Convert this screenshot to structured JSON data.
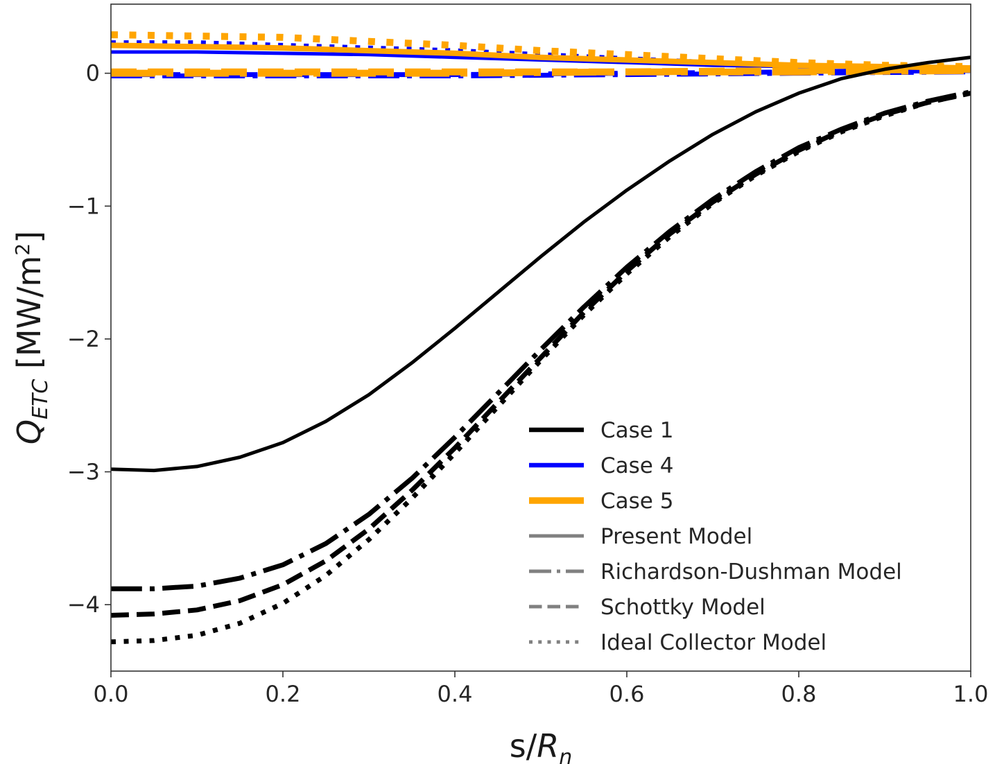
{
  "chart_data": {
    "type": "line",
    "title": "",
    "xlabel": {
      "main": "s/",
      "italic": "R",
      "sub": "n"
    },
    "ylabel": {
      "italic": "Q",
      "sub": "ETC",
      "unit_prefix": " [MW/m",
      "sup": "2",
      "unit_suffix": "]"
    },
    "xlim": [
      0.0,
      1.0
    ],
    "ylim": [
      -4.5,
      0.52
    ],
    "xticks": [
      0.0,
      0.2,
      0.4,
      0.6,
      0.8,
      1.0
    ],
    "xtick_labels": [
      "0.0",
      "0.2",
      "0.4",
      "0.6",
      "0.8",
      "1.0"
    ],
    "yticks": [
      0,
      -1,
      -2,
      -3,
      -4
    ],
    "ytick_labels": [
      "0",
      "−1",
      "−2",
      "−3",
      "−4"
    ],
    "grid": false,
    "legend_position": "lower-right",
    "cases": [
      {
        "name": "Case 1",
        "color": "#000000",
        "width": 5
      },
      {
        "name": "Case 4",
        "color": "#0000ff",
        "width": 5
      },
      {
        "name": "Case 5",
        "color": "#ffa500",
        "width": 8
      }
    ],
    "models": [
      {
        "name": "Present Model",
        "style": "solid"
      },
      {
        "name": "Richardson-Dushman Model",
        "style": "dashdot"
      },
      {
        "name": "Schottky Model",
        "style": "dashed"
      },
      {
        "name": "Ideal Collector Model",
        "style": "dotted"
      }
    ],
    "legend_color": "#808080",
    "series": [
      {
        "case": "Case 1",
        "model": "Present Model",
        "x": [
          0.0,
          0.05,
          0.1,
          0.15,
          0.2,
          0.25,
          0.3,
          0.35,
          0.4,
          0.45,
          0.5,
          0.55,
          0.6,
          0.65,
          0.7,
          0.75,
          0.8,
          0.85,
          0.9,
          0.95,
          1.0
        ],
        "y": [
          -2.98,
          -2.99,
          -2.96,
          -2.89,
          -2.78,
          -2.62,
          -2.42,
          -2.18,
          -1.92,
          -1.65,
          -1.38,
          -1.12,
          -0.88,
          -0.66,
          -0.46,
          -0.29,
          -0.15,
          -0.04,
          0.03,
          0.08,
          0.12
        ]
      },
      {
        "case": "Case 1",
        "model": "Richardson-Dushman Model",
        "x": [
          0.0,
          0.05,
          0.1,
          0.15,
          0.2,
          0.25,
          0.3,
          0.35,
          0.4,
          0.45,
          0.5,
          0.55,
          0.6,
          0.65,
          0.7,
          0.75,
          0.8,
          0.85,
          0.9,
          0.95,
          1.0
        ],
        "y": [
          -3.88,
          -3.88,
          -3.86,
          -3.8,
          -3.7,
          -3.54,
          -3.32,
          -3.05,
          -2.74,
          -2.41,
          -2.08,
          -1.76,
          -1.46,
          -1.19,
          -0.95,
          -0.74,
          -0.56,
          -0.42,
          -0.3,
          -0.21,
          -0.14
        ]
      },
      {
        "case": "Case 1",
        "model": "Schottky Model",
        "x": [
          0.0,
          0.05,
          0.1,
          0.15,
          0.2,
          0.25,
          0.3,
          0.35,
          0.4,
          0.45,
          0.5,
          0.55,
          0.6,
          0.65,
          0.7,
          0.75,
          0.8,
          0.85,
          0.9,
          0.95,
          1.0
        ],
        "y": [
          -4.08,
          -4.07,
          -4.04,
          -3.97,
          -3.85,
          -3.67,
          -3.43,
          -3.14,
          -2.82,
          -2.48,
          -2.14,
          -1.8,
          -1.49,
          -1.21,
          -0.97,
          -0.76,
          -0.58,
          -0.43,
          -0.31,
          -0.22,
          -0.15
        ]
      },
      {
        "case": "Case 1",
        "model": "Ideal Collector Model",
        "x": [
          0.0,
          0.05,
          0.1,
          0.15,
          0.2,
          0.25,
          0.3,
          0.35,
          0.4,
          0.45,
          0.5,
          0.55,
          0.6,
          0.65,
          0.7,
          0.75,
          0.8,
          0.85,
          0.9,
          0.95,
          1.0
        ],
        "y": [
          -4.28,
          -4.27,
          -4.23,
          -4.14,
          -3.99,
          -3.78,
          -3.51,
          -3.2,
          -2.86,
          -2.51,
          -2.16,
          -1.82,
          -1.51,
          -1.23,
          -0.98,
          -0.77,
          -0.59,
          -0.44,
          -0.32,
          -0.22,
          -0.15
        ]
      },
      {
        "case": "Case 4",
        "model": "Present Model",
        "x": [
          0.0,
          0.1,
          0.2,
          0.3,
          0.4,
          0.5,
          0.6,
          0.7,
          0.8,
          0.9,
          1.0
        ],
        "y": [
          0.16,
          0.16,
          0.15,
          0.14,
          0.12,
          0.1,
          0.08,
          0.06,
          0.05,
          0.04,
          0.03
        ]
      },
      {
        "case": "Case 4",
        "model": "Richardson-Dushman Model",
        "x": [
          0.0,
          0.2,
          0.4,
          0.6,
          0.8,
          1.0
        ],
        "y": [
          -0.02,
          -0.02,
          -0.02,
          -0.01,
          0.0,
          0.01
        ]
      },
      {
        "case": "Case 4",
        "model": "Schottky Model",
        "x": [
          0.0,
          0.2,
          0.4,
          0.6,
          0.8,
          1.0
        ],
        "y": [
          -0.01,
          -0.01,
          -0.01,
          0.0,
          0.01,
          0.02
        ]
      },
      {
        "case": "Case 4",
        "model": "Ideal Collector Model",
        "x": [
          0.0,
          0.1,
          0.2,
          0.3,
          0.4,
          0.5,
          0.6,
          0.7,
          0.8,
          0.9,
          1.0
        ],
        "y": [
          0.23,
          0.23,
          0.21,
          0.19,
          0.17,
          0.14,
          0.11,
          0.08,
          0.06,
          0.04,
          0.03
        ]
      },
      {
        "case": "Case 5",
        "model": "Present Model",
        "x": [
          0.0,
          0.1,
          0.2,
          0.3,
          0.4,
          0.5,
          0.6,
          0.7,
          0.8,
          0.9,
          1.0
        ],
        "y": [
          0.21,
          0.2,
          0.19,
          0.17,
          0.15,
          0.12,
          0.1,
          0.08,
          0.06,
          0.05,
          0.04
        ]
      },
      {
        "case": "Case 5",
        "model": "Richardson-Dushman Model",
        "x": [
          0.0,
          0.2,
          0.4,
          0.6,
          0.8,
          1.0
        ],
        "y": [
          0.0,
          0.0,
          0.0,
          0.01,
          0.01,
          0.02
        ]
      },
      {
        "case": "Case 5",
        "model": "Schottky Model",
        "x": [
          0.0,
          0.2,
          0.4,
          0.6,
          0.8,
          1.0
        ],
        "y": [
          0.01,
          0.01,
          0.01,
          0.01,
          0.02,
          0.03
        ]
      },
      {
        "case": "Case 5",
        "model": "Ideal Collector Model",
        "x": [
          0.0,
          0.1,
          0.2,
          0.3,
          0.4,
          0.5,
          0.6,
          0.7,
          0.8,
          0.9,
          1.0
        ],
        "y": [
          0.29,
          0.28,
          0.27,
          0.24,
          0.21,
          0.17,
          0.14,
          0.11,
          0.08,
          0.06,
          0.05
        ]
      }
    ]
  }
}
